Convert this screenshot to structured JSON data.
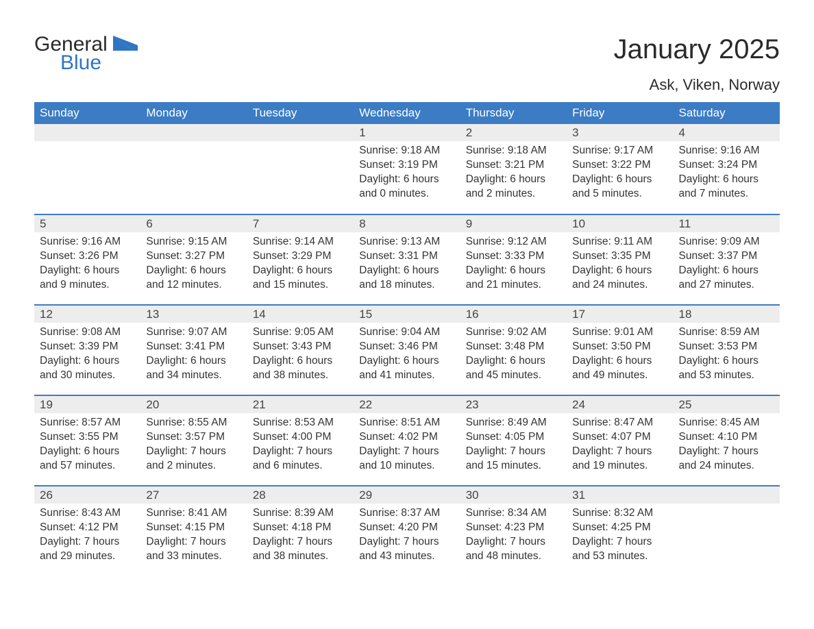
{
  "logo": {
    "word1": "General",
    "word2": "Blue"
  },
  "title": "January 2025",
  "location": "Ask, Viken, Norway",
  "colors": {
    "header_bg": "#3b7cc4",
    "header_text": "#ffffff",
    "daynum_bg": "#ededed",
    "row_border": "#3b7cc4",
    "logo_blue": "#2f75c4",
    "body_text": "#333333",
    "page_bg": "#ffffff"
  },
  "font": {
    "family": "Arial",
    "th_size": 17,
    "title_size": 40,
    "location_size": 22,
    "cell_size": 15.5
  },
  "weekday_labels": [
    "Sunday",
    "Monday",
    "Tuesday",
    "Wednesday",
    "Thursday",
    "Friday",
    "Saturday"
  ],
  "weeks": [
    [
      null,
      null,
      null,
      {
        "day": "1",
        "sunrise": "9:18 AM",
        "sunset": "3:19 PM",
        "dl_h": "6",
        "dl_m": "0"
      },
      {
        "day": "2",
        "sunrise": "9:18 AM",
        "sunset": "3:21 PM",
        "dl_h": "6",
        "dl_m": "2"
      },
      {
        "day": "3",
        "sunrise": "9:17 AM",
        "sunset": "3:22 PM",
        "dl_h": "6",
        "dl_m": "5"
      },
      {
        "day": "4",
        "sunrise": "9:16 AM",
        "sunset": "3:24 PM",
        "dl_h": "6",
        "dl_m": "7"
      }
    ],
    [
      {
        "day": "5",
        "sunrise": "9:16 AM",
        "sunset": "3:26 PM",
        "dl_h": "6",
        "dl_m": "9"
      },
      {
        "day": "6",
        "sunrise": "9:15 AM",
        "sunset": "3:27 PM",
        "dl_h": "6",
        "dl_m": "12"
      },
      {
        "day": "7",
        "sunrise": "9:14 AM",
        "sunset": "3:29 PM",
        "dl_h": "6",
        "dl_m": "15"
      },
      {
        "day": "8",
        "sunrise": "9:13 AM",
        "sunset": "3:31 PM",
        "dl_h": "6",
        "dl_m": "18"
      },
      {
        "day": "9",
        "sunrise": "9:12 AM",
        "sunset": "3:33 PM",
        "dl_h": "6",
        "dl_m": "21"
      },
      {
        "day": "10",
        "sunrise": "9:11 AM",
        "sunset": "3:35 PM",
        "dl_h": "6",
        "dl_m": "24"
      },
      {
        "day": "11",
        "sunrise": "9:09 AM",
        "sunset": "3:37 PM",
        "dl_h": "6",
        "dl_m": "27"
      }
    ],
    [
      {
        "day": "12",
        "sunrise": "9:08 AM",
        "sunset": "3:39 PM",
        "dl_h": "6",
        "dl_m": "30"
      },
      {
        "day": "13",
        "sunrise": "9:07 AM",
        "sunset": "3:41 PM",
        "dl_h": "6",
        "dl_m": "34"
      },
      {
        "day": "14",
        "sunrise": "9:05 AM",
        "sunset": "3:43 PM",
        "dl_h": "6",
        "dl_m": "38"
      },
      {
        "day": "15",
        "sunrise": "9:04 AM",
        "sunset": "3:46 PM",
        "dl_h": "6",
        "dl_m": "41"
      },
      {
        "day": "16",
        "sunrise": "9:02 AM",
        "sunset": "3:48 PM",
        "dl_h": "6",
        "dl_m": "45"
      },
      {
        "day": "17",
        "sunrise": "9:01 AM",
        "sunset": "3:50 PM",
        "dl_h": "6",
        "dl_m": "49"
      },
      {
        "day": "18",
        "sunrise": "8:59 AM",
        "sunset": "3:53 PM",
        "dl_h": "6",
        "dl_m": "53"
      }
    ],
    [
      {
        "day": "19",
        "sunrise": "8:57 AM",
        "sunset": "3:55 PM",
        "dl_h": "6",
        "dl_m": "57"
      },
      {
        "day": "20",
        "sunrise": "8:55 AM",
        "sunset": "3:57 PM",
        "dl_h": "7",
        "dl_m": "2"
      },
      {
        "day": "21",
        "sunrise": "8:53 AM",
        "sunset": "4:00 PM",
        "dl_h": "7",
        "dl_m": "6"
      },
      {
        "day": "22",
        "sunrise": "8:51 AM",
        "sunset": "4:02 PM",
        "dl_h": "7",
        "dl_m": "10"
      },
      {
        "day": "23",
        "sunrise": "8:49 AM",
        "sunset": "4:05 PM",
        "dl_h": "7",
        "dl_m": "15"
      },
      {
        "day": "24",
        "sunrise": "8:47 AM",
        "sunset": "4:07 PM",
        "dl_h": "7",
        "dl_m": "19"
      },
      {
        "day": "25",
        "sunrise": "8:45 AM",
        "sunset": "4:10 PM",
        "dl_h": "7",
        "dl_m": "24"
      }
    ],
    [
      {
        "day": "26",
        "sunrise": "8:43 AM",
        "sunset": "4:12 PM",
        "dl_h": "7",
        "dl_m": "29"
      },
      {
        "day": "27",
        "sunrise": "8:41 AM",
        "sunset": "4:15 PM",
        "dl_h": "7",
        "dl_m": "33"
      },
      {
        "day": "28",
        "sunrise": "8:39 AM",
        "sunset": "4:18 PM",
        "dl_h": "7",
        "dl_m": "38"
      },
      {
        "day": "29",
        "sunrise": "8:37 AM",
        "sunset": "4:20 PM",
        "dl_h": "7",
        "dl_m": "43"
      },
      {
        "day": "30",
        "sunrise": "8:34 AM",
        "sunset": "4:23 PM",
        "dl_h": "7",
        "dl_m": "48"
      },
      {
        "day": "31",
        "sunrise": "8:32 AM",
        "sunset": "4:25 PM",
        "dl_h": "7",
        "dl_m": "53"
      },
      null
    ]
  ],
  "labels": {
    "sunrise": "Sunrise: ",
    "sunset": "Sunset: ",
    "daylight_pre": "Daylight: ",
    "hours_word": " hours",
    "and_word": "and ",
    "minutes_word": " minutes."
  }
}
